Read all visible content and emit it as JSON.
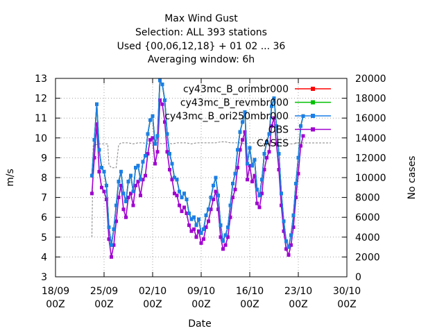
{
  "chart_data": {
    "type": "line",
    "title_lines": [
      "Max Wind Gust",
      "Selection: ALL     393 stations",
      "Used {00,06,12,18} + 01 02 ... 36",
      "Averaging window:  6h"
    ],
    "xlabel": "Date",
    "ylabel": "m/s",
    "y2label": "No cases",
    "xlim": [
      0,
      12
    ],
    "x_unit_note": "days after 18/09 00Z",
    "ylim": [
      3,
      13
    ],
    "y2lim": [
      0,
      20000
    ],
    "x_ticks": [
      {
        "x": 0,
        "label1": "18/09",
        "label2": "00Z"
      },
      {
        "x": 2,
        "label1": "25/09",
        "label2": "00Z"
      },
      {
        "x": 4,
        "label1": "02/10",
        "label2": "00Z"
      },
      {
        "x": 6,
        "label1": "09/10",
        "label2": "00Z"
      },
      {
        "x": 8,
        "label1": "16/10",
        "label2": "00Z"
      },
      {
        "x": 10,
        "label1": "23/10",
        "label2": "00Z"
      },
      {
        "x": 12,
        "label1": "30/10",
        "label2": "00Z"
      }
    ],
    "y_ticks": [
      "3",
      "4",
      "5",
      "6",
      "7",
      "8",
      "9",
      "10",
      "11",
      "12",
      "13"
    ],
    "y2_ticks": [
      "0",
      "2000",
      "4000",
      "6000",
      "8000",
      "10000",
      "12000",
      "14000",
      "16000",
      "18000",
      "20000"
    ],
    "grid": true,
    "legend_position": "top-right",
    "series": [
      {
        "name": "cy43mc_B_orimbr000",
        "color": "#ff0000",
        "axis": "y",
        "x": [
          1.5,
          1.6,
          1.7,
          1.8,
          1.9,
          2.0,
          2.1,
          2.2,
          2.3,
          2.4,
          2.5,
          2.6,
          2.7,
          2.8,
          2.9,
          3.0,
          3.1,
          3.2,
          3.3,
          3.4,
          3.5,
          3.6,
          3.7,
          3.8,
          3.9,
          4.0,
          4.1,
          4.2,
          4.3,
          4.4,
          4.5,
          4.6,
          4.7,
          4.8,
          4.9,
          5.0,
          5.1,
          5.2,
          5.3,
          5.4,
          5.5,
          5.6,
          5.7,
          5.8,
          5.9,
          6.0,
          6.1,
          6.2,
          6.3,
          6.4,
          6.5,
          6.6,
          6.7,
          6.8,
          6.9,
          7.0,
          7.1,
          7.2,
          7.3,
          7.4,
          7.5,
          7.6,
          7.7,
          7.8,
          7.9,
          8.0,
          8.1,
          8.2,
          8.3,
          8.4,
          8.5,
          8.6,
          8.7,
          8.8,
          8.9,
          9.0,
          9.1,
          9.2,
          9.3,
          9.4,
          9.5,
          9.6,
          9.7,
          9.8,
          9.9,
          10.0,
          10.1,
          10.2
        ],
        "y": [
          8.1,
          9.9,
          11.7,
          9.4,
          8.5,
          8.3,
          7.6,
          5.5,
          4.6,
          5.4,
          6.6,
          7.8,
          8.3,
          7.2,
          6.8,
          7.8,
          8.1,
          7.3,
          8.5,
          8.6,
          7.9,
          8.8,
          9.1,
          10.2,
          10.9,
          11.1,
          9.7,
          10.1,
          12.9,
          12.7,
          11.9,
          10.2,
          9.2,
          8.7,
          8.0,
          7.9,
          7.3,
          7.0,
          7.2,
          6.9,
          6.2,
          5.9,
          6.0,
          5.6,
          5.9,
          5.2,
          5.4,
          6.1,
          6.4,
          7.0,
          7.6,
          8.0,
          7.1,
          5.6,
          4.8,
          5.1,
          5.5,
          6.6,
          7.7,
          8.2,
          9.4,
          10.3,
          10.8,
          11.3,
          8.7,
          9.5,
          8.6,
          8.9,
          7.4,
          7.1,
          7.9,
          9.2,
          9.8,
          10.2,
          11.6,
          12.0,
          10.6,
          9.2,
          7.2,
          5.8,
          4.8,
          4.5,
          5.1,
          6.1,
          7.7,
          9.0,
          10.6,
          11.1
        ]
      },
      {
        "name": "cy43mc_B_revmbr000",
        "color": "#00c000",
        "axis": "y",
        "x": [
          1.5,
          1.6,
          1.7,
          1.8,
          1.9,
          2.0,
          2.1,
          2.2,
          2.3,
          2.4,
          2.5,
          2.6,
          2.7,
          2.8,
          2.9,
          3.0,
          3.1,
          3.2,
          3.3,
          3.4,
          3.5,
          3.6,
          3.7,
          3.8,
          3.9,
          4.0,
          4.1,
          4.2,
          4.3,
          4.4,
          4.5,
          4.6,
          4.7,
          4.8,
          4.9,
          5.0,
          5.1,
          5.2,
          5.3,
          5.4,
          5.5,
          5.6,
          5.7,
          5.8,
          5.9,
          6.0,
          6.1,
          6.2,
          6.3,
          6.4,
          6.5,
          6.6,
          6.7,
          6.8,
          6.9,
          7.0,
          7.1,
          7.2,
          7.3,
          7.4,
          7.5,
          7.6,
          7.7,
          7.8,
          7.9,
          8.0,
          8.1,
          8.2,
          8.3,
          8.4,
          8.5,
          8.6,
          8.7,
          8.8,
          8.9,
          9.0,
          9.1,
          9.2,
          9.3,
          9.4,
          9.5,
          9.6,
          9.7,
          9.8,
          9.9,
          10.0,
          10.1,
          10.2
        ],
        "y": [
          8.1,
          9.9,
          11.7,
          9.4,
          8.5,
          8.3,
          7.6,
          5.5,
          4.6,
          5.4,
          6.6,
          7.8,
          8.3,
          7.2,
          6.8,
          7.8,
          8.1,
          7.3,
          8.5,
          8.6,
          7.9,
          8.8,
          9.1,
          10.2,
          10.9,
          11.1,
          9.7,
          10.1,
          12.9,
          12.7,
          11.9,
          10.2,
          9.2,
          8.7,
          8.0,
          7.9,
          7.3,
          7.0,
          7.2,
          6.9,
          6.2,
          5.9,
          6.0,
          5.6,
          5.9,
          5.2,
          5.4,
          6.1,
          6.4,
          7.0,
          7.6,
          8.0,
          7.1,
          5.6,
          4.8,
          5.1,
          5.5,
          6.6,
          7.7,
          8.2,
          9.4,
          10.3,
          10.8,
          11.3,
          8.7,
          9.5,
          8.6,
          8.9,
          7.4,
          7.1,
          7.9,
          9.2,
          9.8,
          10.2,
          11.6,
          12.0,
          10.6,
          9.2,
          7.2,
          5.8,
          4.8,
          4.5,
          5.1,
          6.1,
          7.7,
          9.0,
          10.6,
          11.1
        ]
      },
      {
        "name": "cy43mc_B_ori250mbr000",
        "color": "#1a7fe8",
        "axis": "y",
        "x": [
          1.5,
          1.6,
          1.7,
          1.8,
          1.9,
          2.0,
          2.1,
          2.2,
          2.3,
          2.4,
          2.5,
          2.6,
          2.7,
          2.8,
          2.9,
          3.0,
          3.1,
          3.2,
          3.3,
          3.4,
          3.5,
          3.6,
          3.7,
          3.8,
          3.9,
          4.0,
          4.1,
          4.2,
          4.3,
          4.4,
          4.5,
          4.6,
          4.7,
          4.8,
          4.9,
          5.0,
          5.1,
          5.2,
          5.3,
          5.4,
          5.5,
          5.6,
          5.7,
          5.8,
          5.9,
          6.0,
          6.1,
          6.2,
          6.3,
          6.4,
          6.5,
          6.6,
          6.7,
          6.8,
          6.9,
          7.0,
          7.1,
          7.2,
          7.3,
          7.4,
          7.5,
          7.6,
          7.7,
          7.8,
          7.9,
          8.0,
          8.1,
          8.2,
          8.3,
          8.4,
          8.5,
          8.6,
          8.7,
          8.8,
          8.9,
          9.0,
          9.1,
          9.2,
          9.3,
          9.4,
          9.5,
          9.6,
          9.7,
          9.8,
          9.9,
          10.0,
          10.1,
          10.2
        ],
        "y": [
          8.1,
          9.9,
          11.7,
          9.4,
          8.5,
          8.3,
          7.6,
          5.5,
          4.6,
          5.4,
          6.6,
          7.8,
          8.3,
          7.2,
          6.8,
          7.8,
          8.1,
          7.3,
          8.5,
          8.6,
          7.9,
          8.8,
          9.1,
          10.2,
          10.9,
          11.1,
          9.7,
          10.1,
          12.9,
          12.7,
          11.9,
          10.2,
          9.2,
          8.7,
          8.0,
          7.9,
          7.3,
          7.0,
          7.2,
          6.9,
          6.2,
          5.9,
          6.0,
          5.6,
          5.9,
          5.2,
          5.4,
          6.1,
          6.4,
          7.0,
          7.6,
          8.0,
          7.1,
          5.6,
          4.8,
          5.1,
          5.5,
          6.6,
          7.7,
          8.2,
          9.4,
          10.3,
          10.8,
          11.3,
          8.7,
          9.5,
          8.6,
          8.9,
          7.4,
          7.1,
          7.9,
          9.2,
          9.8,
          10.2,
          11.6,
          12.0,
          10.6,
          9.2,
          7.2,
          5.8,
          4.8,
          4.5,
          5.1,
          6.1,
          7.7,
          9.0,
          10.6,
          11.1
        ]
      },
      {
        "name": "OBS",
        "color": "#a000d0",
        "axis": "y",
        "x": [
          1.5,
          1.6,
          1.7,
          1.8,
          1.9,
          2.0,
          2.1,
          2.2,
          2.3,
          2.4,
          2.5,
          2.6,
          2.7,
          2.8,
          2.9,
          3.0,
          3.1,
          3.2,
          3.3,
          3.4,
          3.5,
          3.6,
          3.7,
          3.8,
          3.9,
          4.0,
          4.1,
          4.2,
          4.3,
          4.4,
          4.5,
          4.6,
          4.7,
          4.8,
          4.9,
          5.0,
          5.1,
          5.2,
          5.3,
          5.4,
          5.5,
          5.6,
          5.7,
          5.8,
          5.9,
          6.0,
          6.1,
          6.2,
          6.3,
          6.4,
          6.5,
          6.6,
          6.7,
          6.8,
          6.9,
          7.0,
          7.1,
          7.2,
          7.3,
          7.4,
          7.5,
          7.6,
          7.7,
          7.8,
          7.9,
          8.0,
          8.1,
          8.2,
          8.3,
          8.4,
          8.5,
          8.6,
          8.7,
          8.8,
          8.9,
          9.0,
          9.1,
          9.2,
          9.3,
          9.4,
          9.5,
          9.6,
          9.7,
          9.8,
          9.9,
          10.0,
          10.1,
          10.2
        ],
        "y": [
          7.2,
          9.0,
          10.7,
          8.3,
          7.5,
          7.3,
          6.9,
          4.9,
          4.0,
          4.6,
          5.8,
          7.0,
          7.6,
          6.4,
          6.0,
          7.0,
          7.2,
          6.6,
          7.6,
          7.8,
          7.1,
          7.9,
          8.1,
          9.2,
          9.9,
          10.0,
          8.7,
          9.3,
          11.9,
          11.7,
          10.8,
          9.3,
          8.4,
          7.9,
          7.2,
          7.1,
          6.6,
          6.3,
          6.5,
          6.2,
          5.6,
          5.3,
          5.4,
          5.0,
          5.3,
          4.7,
          4.9,
          5.5,
          5.8,
          6.4,
          6.9,
          7.3,
          6.4,
          5.0,
          4.4,
          4.6,
          5.0,
          6.0,
          7.0,
          7.4,
          8.5,
          9.4,
          9.9,
          10.3,
          7.9,
          8.6,
          7.8,
          8.1,
          6.7,
          6.5,
          7.2,
          8.4,
          9.0,
          9.3,
          10.6,
          11.0,
          9.7,
          8.4,
          6.6,
          5.3,
          4.4,
          4.1,
          4.6,
          5.5,
          7.0,
          8.2,
          9.6,
          10.1
        ]
      },
      {
        "name": "CASES",
        "color": "#808080",
        "axis": "y2",
        "x": [
          1.5,
          1.55,
          1.65,
          1.8,
          2.0,
          2.15,
          2.2,
          2.3,
          2.4,
          2.5,
          2.6,
          2.7,
          2.8,
          3.0,
          3.2,
          3.4,
          3.6,
          3.8,
          4.0,
          4.2,
          4.4,
          4.6,
          4.8,
          5.0,
          5.2,
          5.4,
          5.6,
          5.8,
          6.0,
          6.2,
          6.4,
          6.6,
          6.8,
          7.0,
          7.2,
          7.4,
          7.6,
          7.8,
          8.0,
          8.2,
          8.4,
          8.6,
          8.8,
          9.0,
          9.2,
          9.4,
          9.6,
          9.8,
          10.0,
          10.2
        ],
        "y": [
          4000,
          13200,
          13300,
          13400,
          13400,
          13400,
          11300,
          11000,
          11000,
          11000,
          13300,
          13500,
          13500,
          13500,
          13400,
          13500,
          13500,
          13400,
          13500,
          13500,
          13400,
          13500,
          13400,
          13500,
          13500,
          13500,
          13400,
          13500,
          13500,
          13500,
          13500,
          13500,
          13600,
          13600,
          13500,
          13500,
          13500,
          13400,
          13500,
          13500,
          13500,
          13400,
          13500,
          13500,
          13500,
          13400,
          13400,
          13400,
          13500,
          13500
        ]
      }
    ]
  }
}
